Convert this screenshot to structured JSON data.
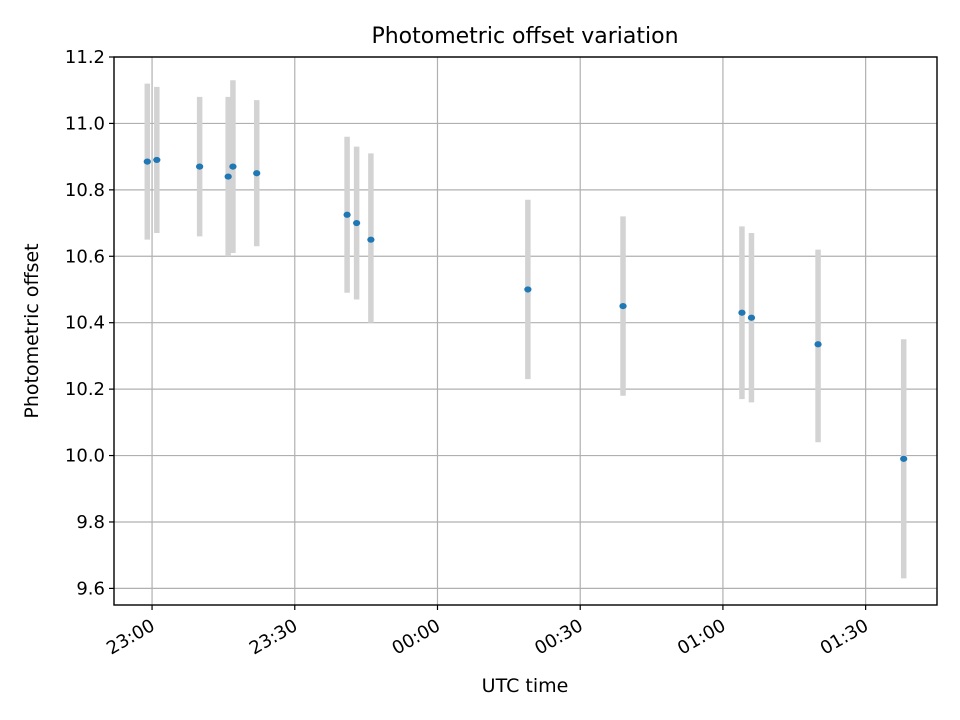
{
  "chart_data": {
    "type": "scatter",
    "title": "Photometric offset variation",
    "xlabel": "UTC time",
    "ylabel": "Photometric offset",
    "x_axis_type": "time",
    "xlim": [
      "22:52",
      "01:45"
    ],
    "ylim": [
      9.55,
      11.2
    ],
    "x_ticks": [
      "23:00",
      "23:30",
      "00:00",
      "00:30",
      "01:00",
      "01:30"
    ],
    "y_ticks": [
      "9.6",
      "9.8",
      "10.0",
      "10.2",
      "10.4",
      "10.6",
      "10.8",
      "11.0",
      "11.2"
    ],
    "grid": true,
    "marker_color": "#1f77b4",
    "errorbar_color": "#d3d3d3",
    "points": [
      {
        "time": "22:59",
        "y": 10.885,
        "err_low": 10.65,
        "err_high": 11.12
      },
      {
        "time": "23:01",
        "y": 10.89,
        "err_low": 10.67,
        "err_high": 11.11
      },
      {
        "time": "23:10",
        "y": 10.87,
        "err_low": 10.66,
        "err_high": 11.08
      },
      {
        "time": "23:16",
        "y": 10.84,
        "err_low": 10.6,
        "err_high": 11.08
      },
      {
        "time": "23:17",
        "y": 10.87,
        "err_low": 10.61,
        "err_high": 11.13
      },
      {
        "time": "23:22",
        "y": 10.85,
        "err_low": 10.63,
        "err_high": 11.07
      },
      {
        "time": "23:41",
        "y": 10.725,
        "err_low": 10.49,
        "err_high": 10.96
      },
      {
        "time": "23:43",
        "y": 10.7,
        "err_low": 10.47,
        "err_high": 10.93
      },
      {
        "time": "23:46",
        "y": 10.65,
        "err_low": 10.4,
        "err_high": 10.91
      },
      {
        "time": "00:19",
        "y": 10.5,
        "err_low": 10.23,
        "err_high": 10.77
      },
      {
        "time": "00:39",
        "y": 10.45,
        "err_low": 10.18,
        "err_high": 10.72
      },
      {
        "time": "01:04",
        "y": 10.43,
        "err_low": 10.17,
        "err_high": 10.69
      },
      {
        "time": "01:06",
        "y": 10.415,
        "err_low": 10.16,
        "err_high": 10.67
      },
      {
        "time": "01:20",
        "y": 10.335,
        "err_low": 10.04,
        "err_high": 10.62
      },
      {
        "time": "01:38",
        "y": 9.99,
        "err_low": 9.63,
        "err_high": 10.35
      }
    ]
  }
}
